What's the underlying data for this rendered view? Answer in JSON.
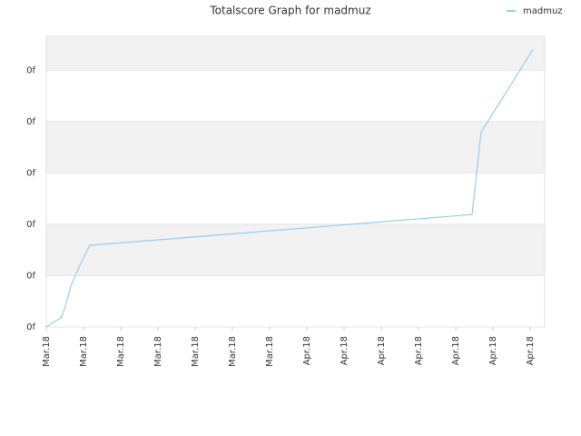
{
  "chart_data": {
    "type": "line",
    "title": "Totalscore Graph for madmuz",
    "x": [
      0,
      0.39,
      0.51,
      0.66,
      0.9,
      1.17,
      11.44,
      11.68,
      13.07
    ],
    "series": [
      {
        "name": "madmuz",
        "color": "#99ccee",
        "values": [
          0,
          0.18,
          0.39,
          0.8,
          1.2,
          1.59,
          2.19,
          3.79,
          5.4
        ]
      }
    ],
    "xlim": [
      0,
      13.39
    ],
    "xticks": [
      {
        "value": 0,
        "label": "Mar.18"
      },
      {
        "value": 1,
        "label": "Mar.18"
      },
      {
        "value": 2,
        "label": "Mar.18"
      },
      {
        "value": 3,
        "label": "Mar.18"
      },
      {
        "value": 4,
        "label": "Mar.18"
      },
      {
        "value": 5,
        "label": "Mar.18"
      },
      {
        "value": 6,
        "label": "Mar.18"
      },
      {
        "value": 7,
        "label": "Apr.18"
      },
      {
        "value": 8,
        "label": "Apr.18"
      },
      {
        "value": 9,
        "label": "Apr.18"
      },
      {
        "value": 10,
        "label": "Apr.18"
      },
      {
        "value": 11,
        "label": "Apr.18"
      },
      {
        "value": 12,
        "label": "Apr.18"
      },
      {
        "value": 13,
        "label": "Apr.18"
      }
    ],
    "ylim": [
      0,
      5.66
    ],
    "yticks": [
      {
        "value": 0,
        "label": "0f"
      },
      {
        "value": 1,
        "label": "0f"
      },
      {
        "value": 2,
        "label": "0f"
      },
      {
        "value": 3,
        "label": "0f"
      },
      {
        "value": 4,
        "label": "0f"
      },
      {
        "value": 5,
        "label": "0f"
      }
    ],
    "grid": true,
    "legend": "top-right"
  }
}
